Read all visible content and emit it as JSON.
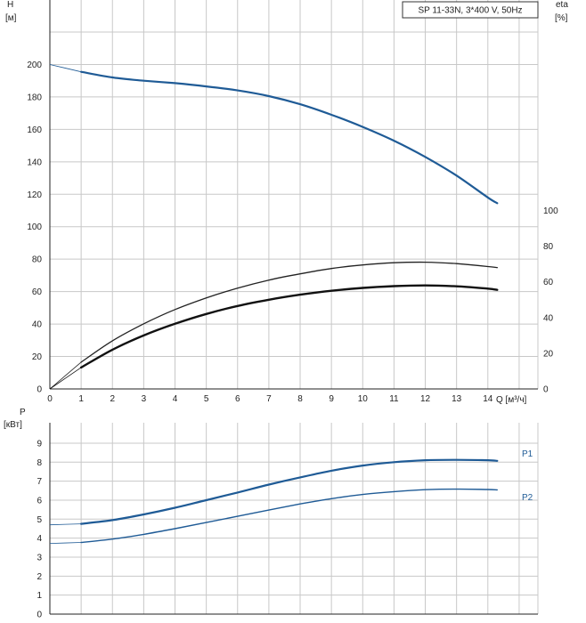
{
  "chart_data": [
    {
      "type": "line",
      "title": "SP 11-33N, 3*400 V, 50Hz",
      "ylabel": "H",
      "yunit": "[м]",
      "y2label": "eta",
      "y2unit": "[%]",
      "xlabel": "Q [м³/ч]",
      "xlim": [
        0,
        15.6
      ],
      "ylim": [
        0,
        220
      ],
      "xticks": [
        "0",
        "1",
        "2",
        "3",
        "4",
        "5",
        "6",
        "7",
        "8",
        "9",
        "10",
        "11",
        "12",
        "13",
        "14"
      ],
      "yticks": [
        "0",
        "20",
        "40",
        "60",
        "80",
        "100",
        "120",
        "140",
        "160",
        "180",
        "200"
      ],
      "y2ticks": [
        "0",
        "20",
        "40",
        "60",
        "80",
        "100"
      ],
      "grid": true,
      "series": [
        {
          "name": "H",
          "color": "#1f5b96",
          "x": [
            0,
            1,
            2,
            3,
            4,
            5,
            6,
            7,
            8,
            9,
            10,
            11,
            12,
            13,
            14,
            14.3
          ],
          "y": [
            200,
            195.5,
            192,
            190,
            188.5,
            186.5,
            184,
            180.5,
            175.5,
            169,
            161.5,
            153,
            143,
            131.5,
            118,
            114.5
          ]
        },
        {
          "name": "eta",
          "color": "#222222",
          "x": [
            0,
            1,
            2,
            3,
            4,
            5,
            6,
            7,
            8,
            9,
            10,
            11,
            12,
            13,
            14,
            14.3
          ],
          "y": [
            0,
            15,
            27,
            36.5,
            44.5,
            51,
            56.5,
            61,
            64.5,
            67.5,
            69.5,
            70.7,
            71,
            70.2,
            68.6,
            68
          ]
        },
        {
          "name": "eta_total",
          "color": "#111111",
          "x": [
            0,
            1,
            2,
            3,
            4,
            5,
            6,
            7,
            8,
            9,
            10,
            11,
            12,
            13,
            14,
            14.3
          ],
          "y": [
            0,
            12,
            22,
            30,
            36.5,
            42,
            46.5,
            50,
            52.8,
            55,
            56.6,
            57.6,
            58,
            57.5,
            56.2,
            55.5
          ]
        }
      ]
    },
    {
      "type": "line",
      "ylabel": "P",
      "yunit": "[кВт]",
      "xlim": [
        0,
        15.6
      ],
      "ylim": [
        0,
        9.7
      ],
      "yticks": [
        "0",
        "1",
        "2",
        "3",
        "4",
        "5",
        "6",
        "7",
        "8",
        "9"
      ],
      "grid": true,
      "series": [
        {
          "name": "P1",
          "color": "#1f5b96",
          "x": [
            0,
            1,
            2,
            3,
            4,
            5,
            6,
            7,
            8,
            9,
            10,
            11,
            12,
            13,
            14,
            14.3
          ],
          "y": [
            4.7,
            4.75,
            4.95,
            5.25,
            5.6,
            6.0,
            6.4,
            6.82,
            7.2,
            7.55,
            7.82,
            8.0,
            8.1,
            8.12,
            8.1,
            8.07
          ]
        },
        {
          "name": "P2",
          "color": "#1f5b96",
          "x": [
            0,
            1,
            2,
            3,
            4,
            5,
            6,
            7,
            8,
            9,
            10,
            11,
            12,
            13,
            14,
            14.3
          ],
          "y": [
            3.72,
            3.77,
            3.95,
            4.2,
            4.5,
            4.82,
            5.15,
            5.48,
            5.8,
            6.08,
            6.3,
            6.45,
            6.55,
            6.58,
            6.56,
            6.54
          ]
        }
      ]
    }
  ]
}
